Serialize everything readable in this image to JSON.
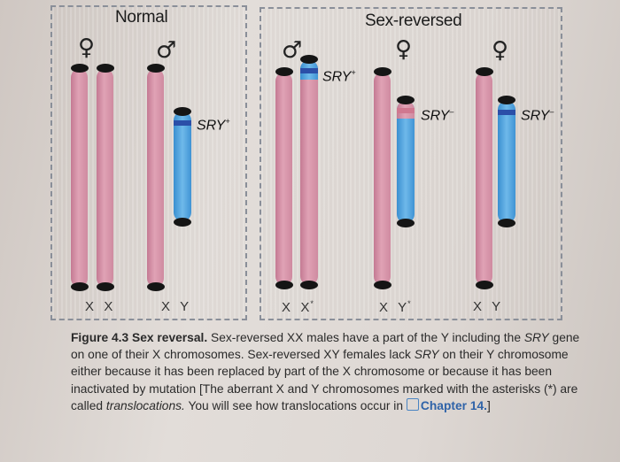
{
  "panels": {
    "normal_title": "Normal",
    "sexrev_title": "Sex-reversed"
  },
  "symbols": {
    "female": "♀",
    "male": "♂"
  },
  "labels": {
    "sry_plus": "SRY",
    "sry_minus": "SRY"
  },
  "superscripts": {
    "plus": "+",
    "minus": "–"
  },
  "genotypes": {
    "xx": "X  X",
    "xy": "X  Y",
    "xx_star": "X  X",
    "xy_star": "X  Y",
    "xy2": "X  Y",
    "star": "*"
  },
  "caption": {
    "figure_label": "Figure 4.3",
    "figure_title": "Sex reversal.",
    "text1": " Sex-reversed XX males have a part of the Y including the ",
    "sry": "SRY",
    "text2": " gene on one of their X chromosomes. Sex-reversed XY females lack ",
    "sry2": "SRY",
    "text3": " on their Y chromosome either because it has been replaced by part of the X chromosome or because it has been inactivated by mutation [The aberrant X and Y chromosomes marked with the asterisks (*) are called ",
    "translocations": "translocations.",
    "text4": " You will see how translocations occur in ",
    "chapter": "Chapter 14.",
    "end": "]"
  }
}
